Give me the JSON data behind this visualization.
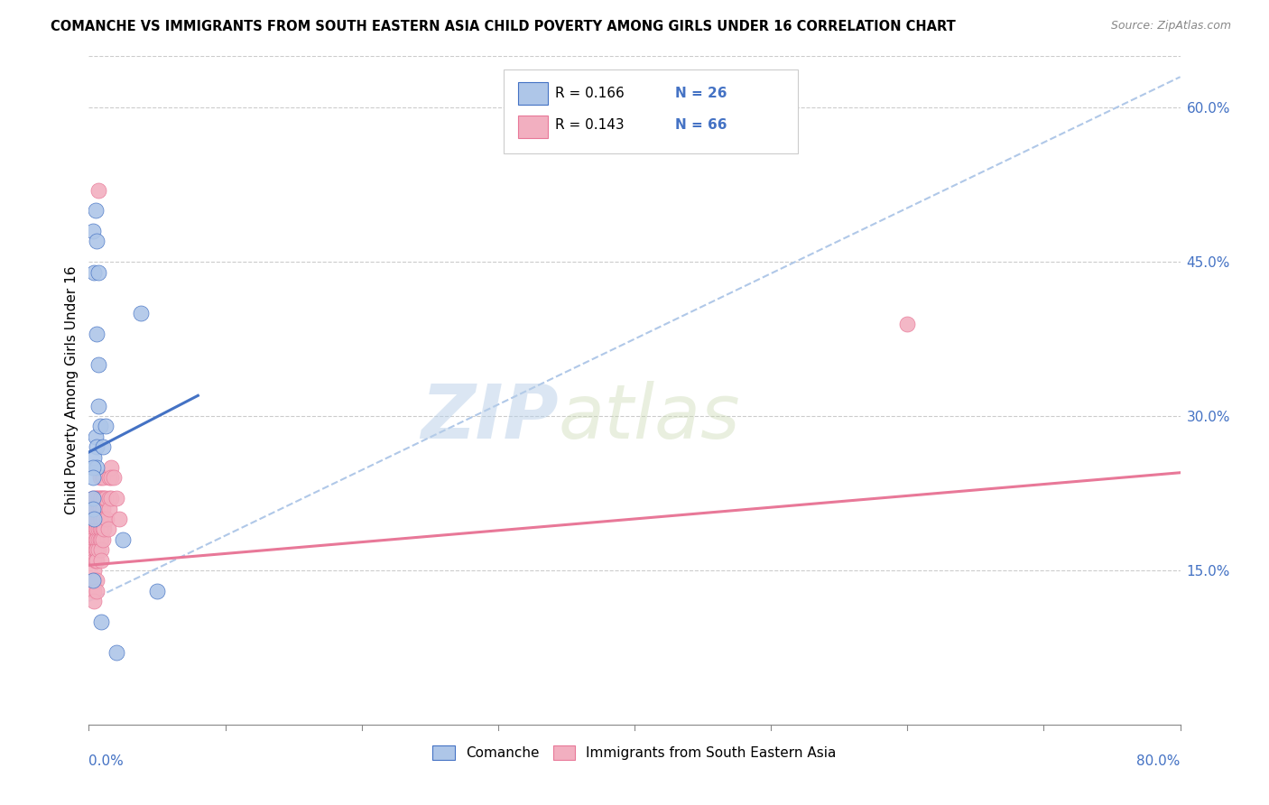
{
  "title": "COMANCHE VS IMMIGRANTS FROM SOUTH EASTERN ASIA CHILD POVERTY AMONG GIRLS UNDER 16 CORRELATION CHART",
  "source": "Source: ZipAtlas.com",
  "ylabel": "Child Poverty Among Girls Under 16",
  "ytick_vals": [
    0.15,
    0.3,
    0.45,
    0.6
  ],
  "ytick_labels": [
    "15.0%",
    "30.0%",
    "45.0%",
    "60.0%"
  ],
  "xlim": [
    0.0,
    0.8
  ],
  "ylim": [
    0.0,
    0.65
  ],
  "watermark_zip": "ZIP",
  "watermark_atlas": "atlas",
  "comanche_color": "#aec6e8",
  "immigrants_color": "#f2afc0",
  "line1_color": "#4472c4",
  "line2_color": "#e87898",
  "dashed_line_color": "#b0c8e8",
  "comanche_scatter": [
    [
      0.003,
      0.48
    ],
    [
      0.005,
      0.5
    ],
    [
      0.006,
      0.47
    ],
    [
      0.004,
      0.44
    ],
    [
      0.007,
      0.44
    ],
    [
      0.006,
      0.38
    ],
    [
      0.007,
      0.35
    ],
    [
      0.007,
      0.31
    ],
    [
      0.005,
      0.28
    ],
    [
      0.006,
      0.27
    ],
    [
      0.004,
      0.26
    ],
    [
      0.006,
      0.25
    ],
    [
      0.003,
      0.25
    ],
    [
      0.003,
      0.24
    ],
    [
      0.003,
      0.22
    ],
    [
      0.003,
      0.21
    ],
    [
      0.004,
      0.2
    ],
    [
      0.008,
      0.29
    ],
    [
      0.01,
      0.27
    ],
    [
      0.012,
      0.29
    ],
    [
      0.038,
      0.4
    ],
    [
      0.003,
      0.14
    ],
    [
      0.009,
      0.1
    ],
    [
      0.025,
      0.18
    ],
    [
      0.05,
      0.13
    ],
    [
      0.02,
      0.07
    ]
  ],
  "immigrants_scatter": [
    [
      0.007,
      0.52
    ],
    [
      0.003,
      0.22
    ],
    [
      0.003,
      0.21
    ],
    [
      0.003,
      0.2
    ],
    [
      0.003,
      0.19
    ],
    [
      0.003,
      0.18
    ],
    [
      0.004,
      0.17
    ],
    [
      0.004,
      0.16
    ],
    [
      0.004,
      0.15
    ],
    [
      0.004,
      0.14
    ],
    [
      0.004,
      0.13
    ],
    [
      0.004,
      0.12
    ],
    [
      0.005,
      0.22
    ],
    [
      0.005,
      0.2
    ],
    [
      0.005,
      0.19
    ],
    [
      0.005,
      0.18
    ],
    [
      0.005,
      0.17
    ],
    [
      0.005,
      0.16
    ],
    [
      0.006,
      0.22
    ],
    [
      0.006,
      0.21
    ],
    [
      0.006,
      0.2
    ],
    [
      0.006,
      0.19
    ],
    [
      0.006,
      0.18
    ],
    [
      0.006,
      0.17
    ],
    [
      0.006,
      0.16
    ],
    [
      0.006,
      0.14
    ],
    [
      0.006,
      0.13
    ],
    [
      0.007,
      0.22
    ],
    [
      0.007,
      0.21
    ],
    [
      0.007,
      0.2
    ],
    [
      0.007,
      0.19
    ],
    [
      0.007,
      0.18
    ],
    [
      0.007,
      0.17
    ],
    [
      0.008,
      0.24
    ],
    [
      0.008,
      0.22
    ],
    [
      0.008,
      0.21
    ],
    [
      0.008,
      0.2
    ],
    [
      0.008,
      0.19
    ],
    [
      0.008,
      0.18
    ],
    [
      0.009,
      0.22
    ],
    [
      0.009,
      0.2
    ],
    [
      0.009,
      0.19
    ],
    [
      0.009,
      0.18
    ],
    [
      0.009,
      0.17
    ],
    [
      0.009,
      0.16
    ],
    [
      0.01,
      0.24
    ],
    [
      0.01,
      0.22
    ],
    [
      0.01,
      0.21
    ],
    [
      0.01,
      0.2
    ],
    [
      0.01,
      0.19
    ],
    [
      0.01,
      0.18
    ],
    [
      0.011,
      0.22
    ],
    [
      0.011,
      0.2
    ],
    [
      0.011,
      0.19
    ],
    [
      0.012,
      0.22
    ],
    [
      0.013,
      0.2
    ],
    [
      0.014,
      0.19
    ],
    [
      0.015,
      0.24
    ],
    [
      0.015,
      0.22
    ],
    [
      0.015,
      0.21
    ],
    [
      0.016,
      0.25
    ],
    [
      0.016,
      0.24
    ],
    [
      0.016,
      0.22
    ],
    [
      0.018,
      0.24
    ],
    [
      0.02,
      0.22
    ],
    [
      0.022,
      0.2
    ],
    [
      0.6,
      0.39
    ]
  ],
  "trendline1_x": [
    0.0,
    0.08
  ],
  "trendline1_y": [
    0.265,
    0.32
  ],
  "trendline2_x": [
    0.0,
    0.8
  ],
  "trendline2_y": [
    0.155,
    0.245
  ],
  "dashed_line_x": [
    0.0,
    0.8
  ],
  "dashed_line_y": [
    0.12,
    0.63
  ]
}
